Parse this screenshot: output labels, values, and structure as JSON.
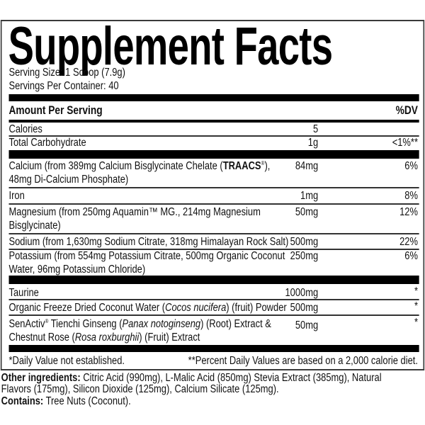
{
  "title": "Supplement Facts",
  "serving_size": "Serving Size: 1 Scoop (7.9g)",
  "servings_per_container": "Servings Per Container: 40",
  "header": {
    "amount": "Amount Per Serving",
    "dv": "%DV"
  },
  "rows": [
    {
      "name": "Calories",
      "amount": "5",
      "dv": ""
    },
    {
      "name": "Total Carbohydrate",
      "amount": "1g",
      "dv": "<1%**"
    },
    {
      "name_a": "Calcium (from 389mg Calcium Bisglycinate Chelate (",
      "name_b": "TRAACS",
      "name_c": "®",
      "name_d": "),",
      "name_line2": "48mg Di-Calcium Phosphate)",
      "amount": "84mg",
      "dv": "6%"
    },
    {
      "name": "Iron",
      "amount": "1mg",
      "dv": "8%"
    },
    {
      "name": "Magnesium (from 250mg Aquamin™ MG., 214mg Magnesium",
      "name_line2": "Bisglycinate)",
      "amount": "50mg",
      "dv": "12%"
    },
    {
      "name": "Sodium (from 1,630mg Sodium Citrate, 318mg Himalayan Rock Salt)",
      "amount": "500mg",
      "dv": "22%"
    },
    {
      "name": "Potassium (from 554mg Potassium Citrate, 500mg Organic Coconut",
      "name_line2": "Water, 96mg Potassium Chloride)",
      "amount": "250mg",
      "dv": "6%"
    },
    {
      "name": "Taurine",
      "amount": "1000mg",
      "dv": "*"
    },
    {
      "name_a": "Organic Freeze Dried Coconut Water (",
      "name_b": "Cocos nucifera",
      "name_c": ") (fruit) Powder",
      "amount": "500mg",
      "dv": "*"
    },
    {
      "name_a": "SenActiv",
      "name_b": "®",
      "name_c": " Tienchi Ginseng (",
      "name_d": "Panax notoginseng",
      "name_e": ") (Root) Extract &",
      "name_f": "Chestnut Rose (",
      "name_g": "Rosa roxburghii",
      "name_h": ") (Fruit) Extract",
      "amount": "50mg",
      "dv": "*"
    }
  ],
  "footnote_left": "*Daily Value not established.",
  "footnote_right": "**Percent Daily Values are based on a 2,000 calorie diet.",
  "other_ingredients": {
    "label": "Other ingredients:",
    "line1": " Citric Acid (990mg), L-Malic Acid (850mg) Stevia Extract (385mg), Natural",
    "line2": "Flavors (175mg), Silicon Dioxide (125mg), Calcium Silicate (125mg)."
  },
  "contains": {
    "label": "Contains:",
    "text": " Tree Nuts (Coconut)."
  }
}
